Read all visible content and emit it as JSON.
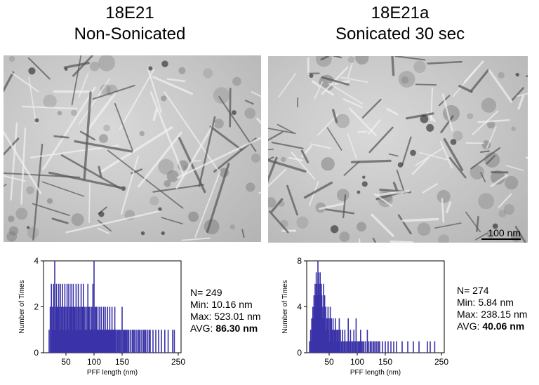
{
  "panels": [
    {
      "title_line1": "18E21",
      "title_line2": "Non-Sonicated",
      "stats": {
        "n": "N= 249",
        "min": "Min: 10.16 nm",
        "max": "Max: 523.01 nm",
        "avg_label": "AVG: ",
        "avg_value": "86.30 nm"
      }
    },
    {
      "title_line1": "18E21a",
      "title_line2": "Sonicated 30 sec",
      "scale_bar_label": "100 nm",
      "stats": {
        "n": "N= 274",
        "min": "Min: 5.84 nm",
        "max": "Max: 238.15 nm",
        "avg_label": "AVG: ",
        "avg_value": "40.06 nm"
      }
    }
  ],
  "chart_data": [
    {
      "type": "bar",
      "xlabel": "PFF length (nm)",
      "ylabel": "Number of Times",
      "xlim": [
        10,
        255
      ],
      "ylim": [
        0,
        4
      ],
      "xticks": [
        50,
        100,
        150,
        250
      ],
      "yticks": [
        0,
        2,
        4
      ],
      "bar_color": "#3a33a8",
      "x": [
        20,
        22,
        24,
        25,
        26,
        27,
        28,
        29,
        30,
        31,
        32,
        33,
        34,
        35,
        36,
        37,
        38,
        39,
        40,
        41,
        42,
        43,
        44,
        45,
        46,
        47,
        48,
        49,
        50,
        51,
        52,
        53,
        54,
        55,
        56,
        57,
        58,
        59,
        60,
        61,
        62,
        63,
        64,
        65,
        66,
        67,
        68,
        69,
        70,
        71,
        72,
        73,
        74,
        75,
        76,
        77,
        78,
        79,
        80,
        81,
        82,
        83,
        84,
        85,
        86,
        87,
        88,
        89,
        90,
        91,
        92,
        93,
        94,
        95,
        96,
        97,
        98,
        99,
        100,
        101,
        102,
        103,
        104,
        105,
        106,
        107,
        108,
        109,
        110,
        111,
        112,
        113,
        114,
        115,
        116,
        117,
        118,
        119,
        120,
        121,
        122,
        123,
        124,
        125,
        126,
        127,
        128,
        129,
        130,
        131,
        132,
        133,
        134,
        135,
        136,
        137,
        138,
        140,
        142,
        143,
        145,
        146,
        148,
        150,
        152,
        154,
        156,
        158,
        160,
        162,
        165,
        168,
        170,
        172,
        175,
        178,
        180,
        182,
        185,
        188,
        190,
        192,
        195,
        198,
        200,
        205,
        210,
        215,
        220,
        226,
        232,
        240,
        243
      ],
      "values": [
        1,
        2,
        3,
        2,
        1,
        2,
        3,
        1,
        4,
        2,
        1,
        3,
        2,
        1,
        2,
        3,
        1,
        2,
        3,
        1,
        2,
        1,
        3,
        2,
        1,
        2,
        3,
        1,
        2,
        1,
        3,
        2,
        1,
        3,
        2,
        1,
        2,
        3,
        1,
        2,
        1,
        3,
        2,
        1,
        2,
        1,
        3,
        1,
        2,
        1,
        3,
        2,
        1,
        2,
        1,
        3,
        1,
        2,
        1,
        3,
        2,
        1,
        2,
        1,
        1,
        2,
        1,
        3,
        1,
        2,
        1,
        2,
        1,
        1,
        2,
        1,
        3,
        1,
        4,
        1,
        2,
        1,
        2,
        1,
        1,
        2,
        1,
        1,
        2,
        1,
        1,
        2,
        1,
        1,
        1,
        2,
        1,
        1,
        2,
        1,
        1,
        1,
        2,
        1,
        1,
        1,
        2,
        1,
        1,
        1,
        2,
        1,
        1,
        1,
        1,
        2,
        1,
        1,
        1,
        1,
        1,
        1,
        1,
        2,
        1,
        1,
        1,
        1,
        1,
        1,
        1,
        1,
        1,
        1,
        1,
        1,
        1,
        1,
        1,
        1,
        1,
        1,
        1,
        1,
        1,
        1,
        1,
        1,
        1,
        1,
        1,
        1,
        1
      ]
    },
    {
      "type": "bar",
      "xlabel": "PFF length (nm)",
      "ylabel": "Number of Times",
      "xlim": [
        10,
        255
      ],
      "ylim": [
        0,
        8
      ],
      "xticks": [
        50,
        100,
        150,
        250
      ],
      "yticks": [
        0,
        4,
        8
      ],
      "bar_color": "#3a33a8",
      "x": [
        15,
        17,
        18,
        19,
        20,
        21,
        22,
        23,
        24,
        25,
        26,
        27,
        28,
        29,
        30,
        31,
        32,
        33,
        34,
        35,
        36,
        37,
        38,
        39,
        40,
        41,
        42,
        43,
        44,
        45,
        46,
        47,
        48,
        49,
        50,
        51,
        52,
        53,
        54,
        55,
        56,
        57,
        58,
        59,
        60,
        61,
        62,
        63,
        64,
        65,
        66,
        67,
        68,
        69,
        70,
        72,
        74,
        75,
        77,
        78,
        80,
        82,
        84,
        85,
        87,
        88,
        90,
        92,
        94,
        95,
        97,
        98,
        100,
        102,
        104,
        106,
        108,
        110,
        112,
        115,
        118,
        120,
        123,
        125,
        128,
        130,
        133,
        135,
        138,
        140,
        145,
        150,
        155,
        160,
        165,
        170,
        180,
        190,
        200,
        210,
        225,
        230,
        238
      ],
      "values": [
        1,
        2,
        1,
        3,
        2,
        4,
        3,
        5,
        4,
        6,
        5,
        7,
        6,
        5,
        8,
        7,
        6,
        5,
        7,
        4,
        6,
        5,
        3,
        4,
        6,
        3,
        5,
        2,
        4,
        3,
        2,
        3,
        4,
        2,
        3,
        1,
        4,
        2,
        3,
        1,
        2,
        3,
        1,
        2,
        1,
        3,
        2,
        1,
        2,
        1,
        2,
        1,
        3,
        1,
        2,
        1,
        2,
        1,
        1,
        2,
        1,
        1,
        3,
        1,
        1,
        2,
        1,
        1,
        2,
        1,
        1,
        3,
        1,
        1,
        1,
        2,
        1,
        1,
        1,
        1,
        2,
        1,
        1,
        1,
        1,
        1,
        1,
        1,
        1,
        1,
        1,
        1,
        1,
        1,
        1,
        1,
        1,
        1,
        1,
        1,
        1,
        1,
        1
      ]
    }
  ]
}
